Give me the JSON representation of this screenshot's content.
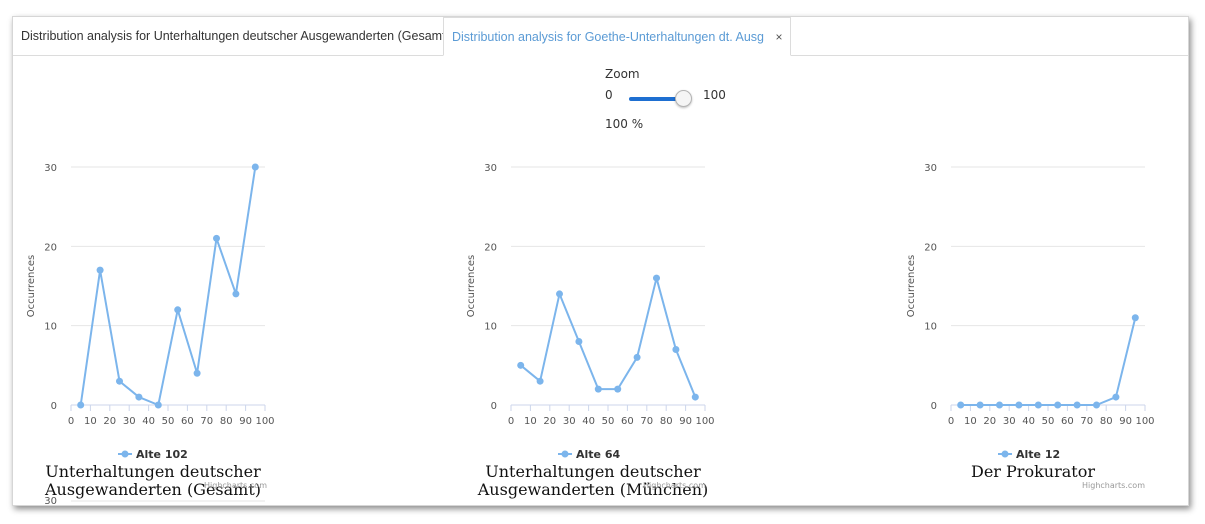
{
  "tabs": [
    {
      "label": "Distribution analysis for Unterhaltungen deutscher Ausgewanderten (Gesamt)",
      "close": "×",
      "active": false
    },
    {
      "label": "Distribution analysis for Goethe-Unterhaltungen dt. Ausg",
      "close": "×",
      "active": true
    }
  ],
  "zoom": {
    "label": "Zoom",
    "min": "0",
    "max": "100",
    "value_text": "100 %",
    "value": 100
  },
  "colors": {
    "series": "#7cb5ec",
    "active_tab": "#5b9bd5",
    "slider": "#1e6fd1"
  },
  "credits": "Highcharts.com",
  "chart_data": [
    {
      "type": "line",
      "title": "Unterhaltungen deutscher Ausgewanderten (Gesamt)",
      "ylabel": "Occurrences",
      "xlabel": "",
      "x": [
        5,
        15,
        25,
        35,
        45,
        55,
        65,
        75,
        85,
        95
      ],
      "xticks": [
        0,
        10,
        20,
        30,
        40,
        50,
        60,
        70,
        80,
        90,
        100
      ],
      "yticks": [
        0,
        10,
        20,
        30
      ],
      "xlim": [
        0,
        100
      ],
      "ylim": [
        0,
        30
      ],
      "series": [
        {
          "name": "Alte 102",
          "values": [
            0,
            17,
            3,
            1,
            0,
            12,
            4,
            21,
            14,
            30
          ]
        }
      ],
      "legend": "bottom-center",
      "grid": true
    },
    {
      "type": "line",
      "title": "Unterhaltungen deutscher Ausgewanderten (München)",
      "ylabel": "Occurrences",
      "xlabel": "",
      "x": [
        5,
        15,
        25,
        35,
        45,
        55,
        65,
        75,
        85,
        95
      ],
      "xticks": [
        0,
        10,
        20,
        30,
        40,
        50,
        60,
        70,
        80,
        90,
        100
      ],
      "yticks": [
        0,
        10,
        20,
        30
      ],
      "xlim": [
        0,
        100
      ],
      "ylim": [
        0,
        30
      ],
      "series": [
        {
          "name": "Alte 64",
          "values": [
            5,
            3,
            14,
            8,
            2,
            2,
            6,
            16,
            7,
            1
          ]
        }
      ],
      "legend": "bottom-center",
      "grid": true
    },
    {
      "type": "line",
      "title": "Der Prokurator",
      "ylabel": "Occurrences",
      "xlabel": "",
      "x": [
        5,
        15,
        25,
        35,
        45,
        55,
        65,
        75,
        85,
        95
      ],
      "xticks": [
        0,
        10,
        20,
        30,
        40,
        50,
        60,
        70,
        80,
        90,
        100
      ],
      "yticks": [
        0,
        10,
        20,
        30
      ],
      "xlim": [
        0,
        100
      ],
      "ylim": [
        0,
        30
      ],
      "series": [
        {
          "name": "Alte 12",
          "values": [
            0,
            0,
            0,
            0,
            0,
            0,
            0,
            0,
            1,
            11
          ]
        }
      ],
      "legend": "bottom-center",
      "grid": true
    },
    {
      "type": "line",
      "title": "",
      "ylabel": "",
      "xlabel": "",
      "yticks": [
        30
      ],
      "ylim": [
        0,
        30
      ],
      "series": []
    }
  ]
}
